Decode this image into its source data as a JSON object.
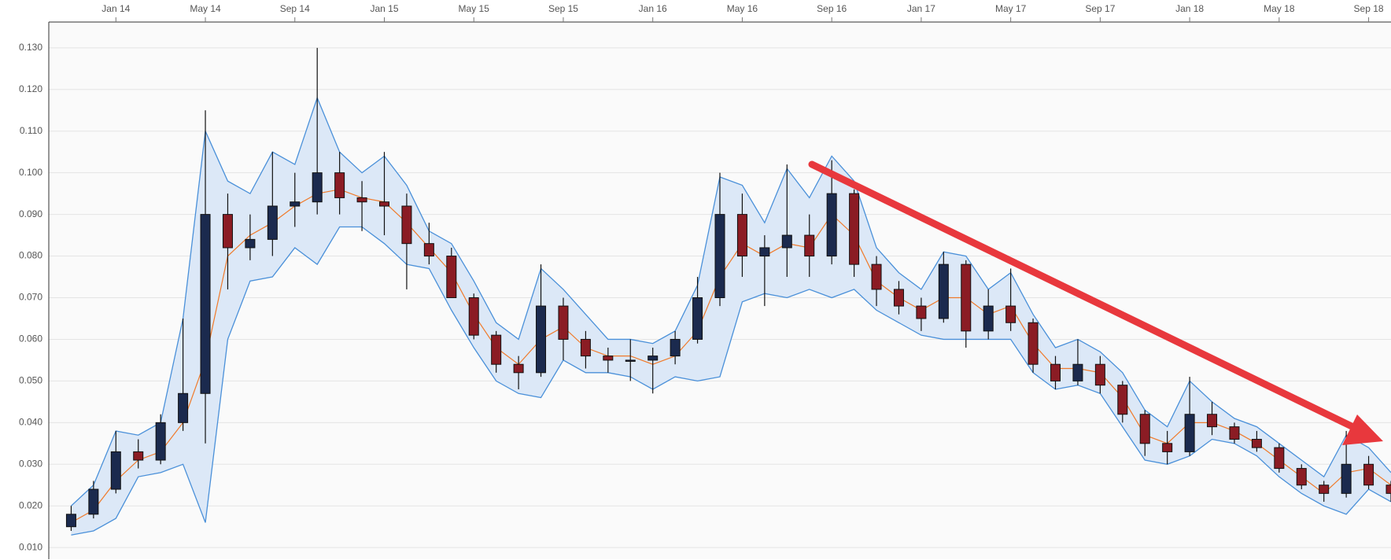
{
  "chart_data": {
    "type": "candlestick",
    "x": [
      "2013-11",
      "2013-12",
      "2014-01",
      "2014-02",
      "2014-03",
      "2014-04",
      "2014-05",
      "2014-06",
      "2014-07",
      "2014-08",
      "2014-09",
      "2014-10",
      "2014-11",
      "2014-12",
      "2015-01",
      "2015-02",
      "2015-03",
      "2015-04",
      "2015-05",
      "2015-06",
      "2015-07",
      "2015-08",
      "2015-09",
      "2015-10",
      "2015-11",
      "2015-12",
      "2016-01",
      "2016-02",
      "2016-03",
      "2016-04",
      "2016-05",
      "2016-06",
      "2016-07",
      "2016-08",
      "2016-09",
      "2016-10",
      "2016-11",
      "2016-12",
      "2017-01",
      "2017-02",
      "2017-03",
      "2017-04",
      "2017-05",
      "2017-06",
      "2017-07",
      "2017-08",
      "2017-09",
      "2017-10",
      "2017-11",
      "2017-12",
      "2018-01",
      "2018-02",
      "2018-03",
      "2018-04",
      "2018-05",
      "2018-06",
      "2018-07",
      "2018-08",
      "2018-09",
      "2018-10"
    ],
    "open": [
      0.015,
      0.018,
      0.024,
      0.033,
      0.031,
      0.04,
      0.047,
      0.09,
      0.082,
      0.084,
      0.092,
      0.093,
      0.1,
      0.094,
      0.093,
      0.092,
      0.083,
      0.08,
      0.07,
      0.061,
      0.054,
      0.052,
      0.068,
      0.06,
      0.056,
      0.055,
      0.055,
      0.056,
      0.06,
      0.07,
      0.09,
      0.08,
      0.082,
      0.085,
      0.08,
      0.095,
      0.078,
      0.072,
      0.068,
      0.065,
      0.078,
      0.062,
      0.068,
      0.064,
      0.054,
      0.05,
      0.054,
      0.049,
      0.042,
      0.035,
      0.033,
      0.042,
      0.039,
      0.036,
      0.034,
      0.029,
      0.025,
      0.023,
      0.03,
      0.025
    ],
    "high": [
      0.02,
      0.026,
      0.038,
      0.036,
      0.042,
      0.065,
      0.115,
      0.095,
      0.09,
      0.105,
      0.1,
      0.13,
      0.105,
      0.098,
      0.105,
      0.095,
      0.088,
      0.082,
      0.071,
      0.062,
      0.056,
      0.078,
      0.07,
      0.062,
      0.058,
      0.06,
      0.058,
      0.062,
      0.075,
      0.1,
      0.095,
      0.085,
      0.102,
      0.09,
      0.103,
      0.096,
      0.08,
      0.074,
      0.07,
      0.081,
      0.079,
      0.072,
      0.077,
      0.065,
      0.056,
      0.06,
      0.056,
      0.05,
      0.043,
      0.038,
      0.051,
      0.045,
      0.04,
      0.038,
      0.035,
      0.03,
      0.026,
      0.038,
      0.032,
      0.026
    ],
    "low": [
      0.014,
      0.017,
      0.023,
      0.029,
      0.03,
      0.038,
      0.035,
      0.072,
      0.079,
      0.08,
      0.087,
      0.09,
      0.09,
      0.086,
      0.085,
      0.072,
      0.078,
      0.07,
      0.06,
      0.052,
      0.048,
      0.051,
      0.055,
      0.053,
      0.052,
      0.05,
      0.047,
      0.054,
      0.059,
      0.068,
      0.075,
      0.068,
      0.075,
      0.075,
      0.078,
      0.075,
      0.068,
      0.066,
      0.062,
      0.064,
      0.058,
      0.06,
      0.062,
      0.052,
      0.048,
      0.049,
      0.047,
      0.04,
      0.032,
      0.03,
      0.032,
      0.037,
      0.035,
      0.033,
      0.028,
      0.024,
      0.021,
      0.022,
      0.024,
      0.021
    ],
    "close": [
      0.018,
      0.024,
      0.033,
      0.031,
      0.04,
      0.047,
      0.09,
      0.082,
      0.084,
      0.092,
      0.093,
      0.1,
      0.094,
      0.093,
      0.092,
      0.083,
      0.08,
      0.07,
      0.061,
      0.054,
      0.052,
      0.068,
      0.06,
      0.056,
      0.055,
      0.055,
      0.056,
      0.06,
      0.07,
      0.09,
      0.08,
      0.082,
      0.085,
      0.08,
      0.095,
      0.078,
      0.072,
      0.068,
      0.065,
      0.078,
      0.062,
      0.068,
      0.064,
      0.054,
      0.05,
      0.054,
      0.049,
      0.042,
      0.035,
      0.033,
      0.042,
      0.039,
      0.036,
      0.034,
      0.029,
      0.025,
      0.023,
      0.03,
      0.025,
      0.023
    ],
    "bands": {
      "upper": [
        0.02,
        0.025,
        0.038,
        0.037,
        0.04,
        0.065,
        0.11,
        0.098,
        0.095,
        0.105,
        0.102,
        0.118,
        0.105,
        0.1,
        0.104,
        0.097,
        0.086,
        0.083,
        0.074,
        0.064,
        0.06,
        0.077,
        0.072,
        0.066,
        0.06,
        0.06,
        0.059,
        0.062,
        0.073,
        0.099,
        0.097,
        0.088,
        0.101,
        0.094,
        0.104,
        0.098,
        0.082,
        0.076,
        0.072,
        0.081,
        0.08,
        0.072,
        0.076,
        0.066,
        0.058,
        0.06,
        0.057,
        0.052,
        0.043,
        0.039,
        0.05,
        0.045,
        0.041,
        0.039,
        0.035,
        0.031,
        0.027,
        0.037,
        0.034,
        0.028
      ],
      "middle": [
        0.016,
        0.019,
        0.026,
        0.031,
        0.033,
        0.04,
        0.055,
        0.08,
        0.085,
        0.088,
        0.092,
        0.095,
        0.096,
        0.094,
        0.093,
        0.088,
        0.082,
        0.076,
        0.066,
        0.058,
        0.054,
        0.06,
        0.063,
        0.058,
        0.056,
        0.056,
        0.054,
        0.056,
        0.062,
        0.075,
        0.083,
        0.08,
        0.083,
        0.082,
        0.09,
        0.085,
        0.074,
        0.07,
        0.067,
        0.07,
        0.07,
        0.066,
        0.068,
        0.059,
        0.053,
        0.053,
        0.052,
        0.046,
        0.037,
        0.035,
        0.04,
        0.04,
        0.038,
        0.035,
        0.031,
        0.027,
        0.023,
        0.028,
        0.029,
        0.025
      ],
      "lower": [
        0.013,
        0.014,
        0.017,
        0.027,
        0.028,
        0.03,
        0.016,
        0.06,
        0.074,
        0.075,
        0.082,
        0.078,
        0.087,
        0.087,
        0.083,
        0.078,
        0.077,
        0.067,
        0.058,
        0.05,
        0.047,
        0.046,
        0.055,
        0.052,
        0.052,
        0.051,
        0.048,
        0.051,
        0.05,
        0.051,
        0.069,
        0.071,
        0.07,
        0.072,
        0.07,
        0.072,
        0.067,
        0.064,
        0.061,
        0.06,
        0.06,
        0.06,
        0.06,
        0.052,
        0.048,
        0.049,
        0.047,
        0.039,
        0.031,
        0.03,
        0.032,
        0.036,
        0.035,
        0.032,
        0.027,
        0.023,
        0.02,
        0.018,
        0.024,
        0.021
      ]
    },
    "up_color": "#1b2a4e",
    "down_color": "#8b1c24",
    "band_fill": "#dce8f7",
    "band_line": "#4a90d9",
    "middle_color": "#f07a2a",
    "xlim": [
      "2013-10",
      "2018-10"
    ],
    "xticks": [
      {
        "value": "2014-01",
        "label": "Jan 14"
      },
      {
        "value": "2014-05",
        "label": "May 14"
      },
      {
        "value": "2014-09",
        "label": "Sep 14"
      },
      {
        "value": "2015-01",
        "label": "Jan 15"
      },
      {
        "value": "2015-05",
        "label": "May 15"
      },
      {
        "value": "2015-09",
        "label": "Sep 15"
      },
      {
        "value": "2016-01",
        "label": "Jan 16"
      },
      {
        "value": "2016-05",
        "label": "May 16"
      },
      {
        "value": "2016-09",
        "label": "Sep 16"
      },
      {
        "value": "2017-01",
        "label": "Jan 17"
      },
      {
        "value": "2017-05",
        "label": "May 17"
      },
      {
        "value": "2017-09",
        "label": "Sep 17"
      },
      {
        "value": "2018-01",
        "label": "Jan 18"
      },
      {
        "value": "2018-05",
        "label": "May 18"
      },
      {
        "value": "2018-09",
        "label": "Sep 18"
      }
    ],
    "ylim": [
      0.0072,
      0.1362
    ],
    "yticks": [
      {
        "value": 0.01,
        "label": "0.010"
      },
      {
        "value": 0.02,
        "label": "0.020"
      },
      {
        "value": 0.03,
        "label": "0.030"
      },
      {
        "value": 0.04,
        "label": "0.040"
      },
      {
        "value": 0.05,
        "label": "0.050"
      },
      {
        "value": 0.06,
        "label": "0.060"
      },
      {
        "value": 0.07,
        "label": "0.070"
      },
      {
        "value": 0.08,
        "label": "0.080"
      },
      {
        "value": 0.09,
        "label": "0.090"
      },
      {
        "value": 0.1,
        "label": "0.100"
      },
      {
        "value": 0.11,
        "label": "0.110"
      },
      {
        "value": 0.12,
        "label": "0.120"
      },
      {
        "value": 0.13,
        "label": "0.130"
      }
    ],
    "grid": true
  }
}
